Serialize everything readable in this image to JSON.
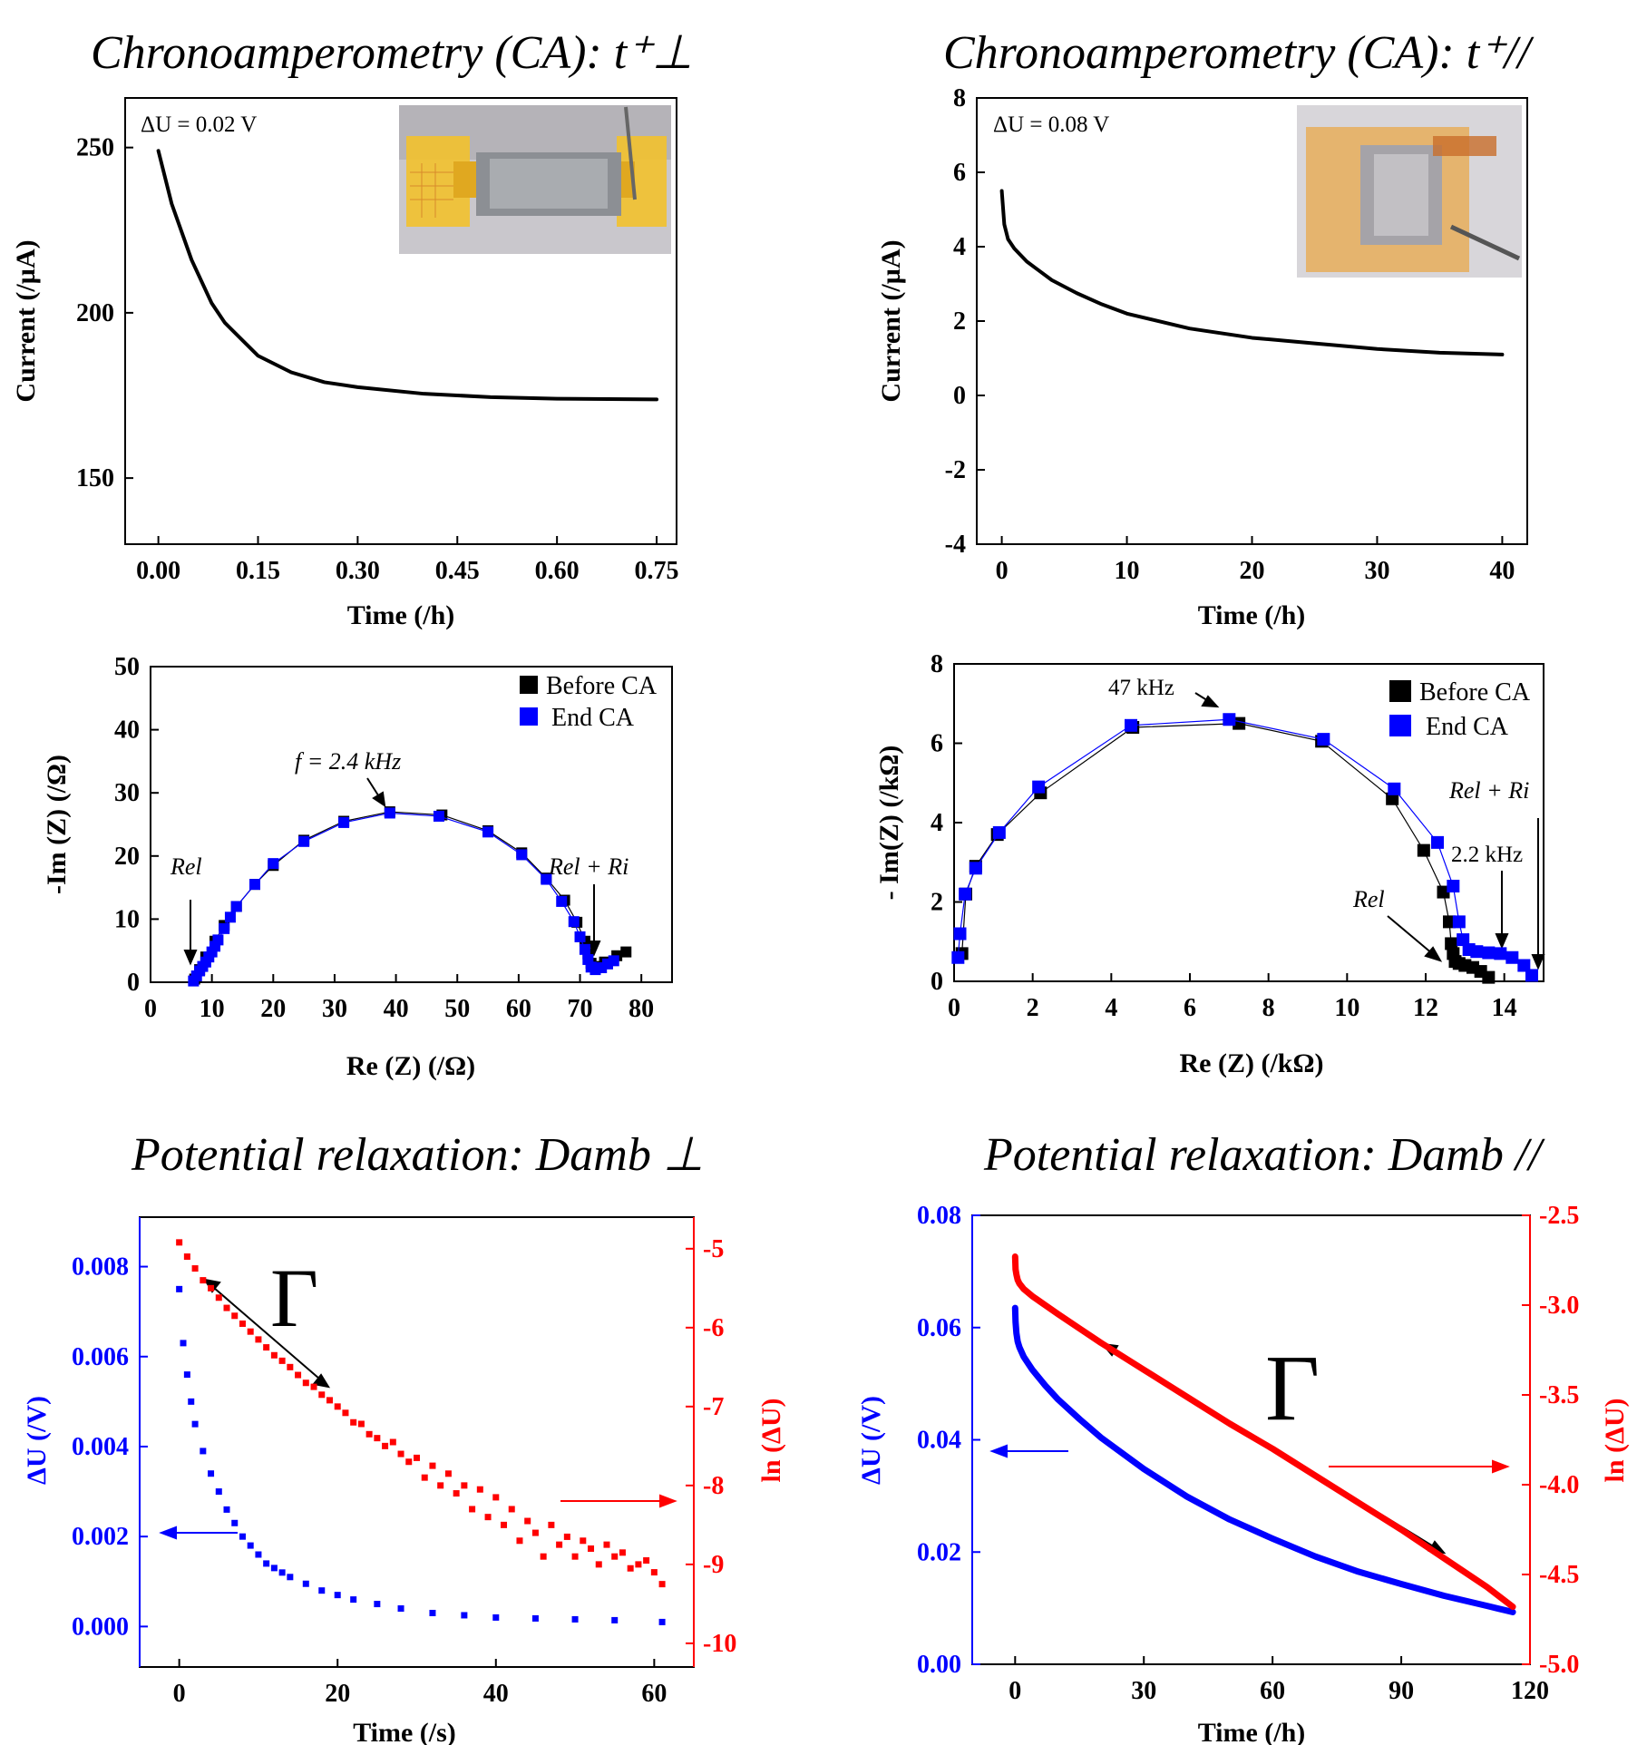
{
  "titles": {
    "p1": "Chronoamperometry (CA):  t⁺⊥",
    "p2": "Chronoamperometry (CA):  t⁺//",
    "p5": "Potential relaxation:  Damb ⊥",
    "p6": "Potential relaxation:  Damb //"
  },
  "chart_data": [
    {
      "type": "line",
      "title": "Chronoamperometry (CA):  t⁺⊥",
      "xlabel": "Time (/h)",
      "ylabel": "Current (/µA)",
      "xlim": [
        -0.05,
        0.78
      ],
      "ylim": [
        130,
        265
      ],
      "xticks": [
        "0.00",
        "0.15",
        "0.30",
        "0.45",
        "0.60",
        "0.75"
      ],
      "yticks": [
        "150",
        "200",
        "250"
      ],
      "annotation": "ΔU = 0.02 V",
      "inset_photo": "cell-photo-perpendicular",
      "series": [
        {
          "color": "#000000",
          "x": [
            0.0,
            0.02,
            0.05,
            0.08,
            0.1,
            0.15,
            0.2,
            0.25,
            0.3,
            0.4,
            0.5,
            0.6,
            0.75
          ],
          "y": [
            249,
            233,
            216,
            203,
            197,
            187,
            182,
            179,
            177.5,
            175.5,
            174.5,
            174,
            173.8
          ]
        }
      ]
    },
    {
      "type": "line",
      "title": "Chronoamperometry (CA):  t⁺//",
      "xlabel": "Time (/h)",
      "ylabel": "Current (/µA)",
      "xlim": [
        -2,
        42
      ],
      "ylim": [
        -4,
        8
      ],
      "xticks": [
        "0",
        "10",
        "20",
        "30",
        "40"
      ],
      "yticks": [
        "-4",
        "-2",
        "0",
        "2",
        "4",
        "6",
        "8"
      ],
      "annotation": "ΔU = 0.08 V",
      "inset_photo": "cell-photo-parallel",
      "series": [
        {
          "color": "#000000",
          "x": [
            0,
            0.2,
            0.5,
            1,
            2,
            4,
            6,
            8,
            10,
            15,
            20,
            25,
            30,
            35,
            40
          ],
          "y": [
            5.5,
            4.6,
            4.2,
            3.95,
            3.6,
            3.1,
            2.75,
            2.45,
            2.2,
            1.8,
            1.55,
            1.4,
            1.25,
            1.15,
            1.1
          ]
        }
      ]
    },
    {
      "type": "scatter",
      "xlabel": "Re (Z) (/Ω)",
      "ylabel": "-Im (Z) (/Ω)",
      "xlim": [
        0,
        85
      ],
      "ylim": [
        0,
        50
      ],
      "xticks": [
        "0",
        "10",
        "20",
        "30",
        "40",
        "50",
        "60",
        "70",
        "80"
      ],
      "yticks": [
        "0",
        "10",
        "20",
        "30",
        "40",
        "50"
      ],
      "legend": "top-right",
      "annotations": [
        "f = 2.4 kHz",
        "Rel",
        "Rel + Ri"
      ],
      "series": [
        {
          "name": "Before CA",
          "color": "#000000",
          "x": [
            7.2,
            8,
            9,
            10.5,
            12,
            14,
            17,
            20,
            25,
            31.5,
            39,
            47.5,
            55,
            60.5,
            64.5,
            67.5,
            69.5,
            70.8,
            71.3,
            71.8,
            72.5,
            74,
            76,
            77.5
          ],
          "y": [
            0.5,
            2,
            4,
            6.5,
            9,
            12,
            15.5,
            18.5,
            22.5,
            25.5,
            27,
            26.5,
            24,
            20.5,
            16.5,
            13,
            9.5,
            6.5,
            4.5,
            3,
            2.5,
            3.2,
            4.2,
            4.8
          ]
        },
        {
          "name": "End CA",
          "color": "#0000ff",
          "x": [
            7,
            7.5,
            8,
            8.5,
            9,
            9.5,
            10,
            10.5,
            11,
            12,
            13,
            14,
            17,
            20,
            25,
            31.5,
            39,
            47,
            55,
            60.5,
            64.5,
            67,
            69,
            70,
            70.8,
            71.3,
            71.8,
            72.5,
            73.5,
            74.5,
            75.5
          ],
          "y": [
            0.2,
            1,
            1.8,
            2.5,
            3.2,
            4,
            4.8,
            5.7,
            6.7,
            8.5,
            10.3,
            12,
            15.5,
            18.8,
            22.3,
            25.3,
            26.8,
            26.3,
            23.8,
            20.2,
            16.3,
            12.8,
            9.6,
            7.2,
            5.2,
            3.6,
            2.4,
            2,
            2.3,
            2.9,
            3.4
          ]
        }
      ]
    },
    {
      "type": "scatter",
      "xlabel": "Re (Z) (/kΩ)",
      "ylabel": "- Im(Z) (/kΩ)",
      "xlim": [
        0,
        15
      ],
      "ylim": [
        0,
        8
      ],
      "xticks": [
        "0",
        "2",
        "4",
        "6",
        "8",
        "10",
        "12",
        "14"
      ],
      "yticks": [
        "0",
        "2",
        "4",
        "6",
        "8"
      ],
      "legend": "top-right",
      "annotations": [
        "47 kHz",
        "Rel",
        "Rel + Ri",
        "2.2 kHz"
      ],
      "series": [
        {
          "name": "Before CA",
          "color": "#000000",
          "x": [
            0.2,
            0.3,
            0.55,
            1.1,
            2.2,
            4.55,
            7.25,
            9.35,
            11.15,
            11.95,
            12.45,
            12.6,
            12.65,
            12.7,
            12.75,
            12.85,
            13.0,
            13.2,
            13.4,
            13.6
          ],
          "y": [
            0.7,
            2.2,
            2.9,
            3.7,
            4.75,
            6.4,
            6.5,
            6.05,
            4.6,
            3.3,
            2.25,
            1.5,
            0.95,
            0.7,
            0.5,
            0.45,
            0.4,
            0.35,
            0.25,
            0.1
          ]
        },
        {
          "name": "End CA",
          "color": "#0000ff",
          "x": [
            0.1,
            0.15,
            0.28,
            0.55,
            1.15,
            2.15,
            4.5,
            7.0,
            9.4,
            11.2,
            12.3,
            12.7,
            12.85,
            12.95,
            13.1,
            13.3,
            13.6,
            13.9,
            14.2,
            14.5,
            14.7
          ],
          "y": [
            0.6,
            1.2,
            2.2,
            2.85,
            3.75,
            4.9,
            6.45,
            6.6,
            6.1,
            4.85,
            3.5,
            2.4,
            1.5,
            1.05,
            0.8,
            0.75,
            0.72,
            0.7,
            0.6,
            0.4,
            0.15
          ]
        }
      ]
    },
    {
      "type": "scatter",
      "xlabel": "Time (/s)",
      "ylabel": "ΔU (/V)",
      "ylabel_right": "ln (ΔU)",
      "xlim": [
        -5,
        65
      ],
      "ylim": [
        -0.0009,
        0.0091
      ],
      "ylim_right": [
        -10.3,
        -4.6
      ],
      "xticks": [
        "0",
        "20",
        "40",
        "60"
      ],
      "yticks": [
        "0.000",
        "0.002",
        "0.004",
        "0.006",
        "0.008"
      ],
      "yticks_right": [
        "-10",
        "-9",
        "-8",
        "-7",
        "-6",
        "-5"
      ],
      "annotations": [
        "Γ"
      ],
      "series": [
        {
          "name": "ΔU",
          "color": "#0000ff",
          "axis": "left",
          "x": [
            0,
            0.5,
            1,
            1.5,
            2,
            3,
            4,
            5,
            6,
            7,
            8,
            9,
            10,
            11,
            12,
            13,
            14,
            16,
            18,
            20,
            22,
            25,
            28,
            32,
            36,
            40,
            45,
            50,
            55,
            61
          ],
          "y": [
            0.0075,
            0.0063,
            0.0056,
            0.005,
            0.0045,
            0.0039,
            0.0034,
            0.003,
            0.0026,
            0.0023,
            0.002,
            0.0018,
            0.0016,
            0.0014,
            0.0013,
            0.0012,
            0.0011,
            0.00095,
            0.0008,
            0.0007,
            0.0006,
            0.0005,
            0.0004,
            0.0003,
            0.00025,
            0.0002,
            0.00018,
            0.00016,
            0.00014,
            0.0001
          ]
        },
        {
          "name": "ln (ΔU)",
          "color": "#ff0000",
          "axis": "right",
          "x": [
            0,
            1,
            2,
            3,
            4,
            5,
            6,
            7,
            8,
            9,
            10,
            11,
            12,
            13,
            14,
            15,
            16,
            17,
            18,
            19,
            20,
            21,
            22,
            23,
            24,
            25,
            26,
            27,
            28,
            29,
            30,
            31,
            32,
            33,
            34,
            35,
            36,
            37,
            38,
            39,
            40,
            41,
            42,
            43,
            44,
            45,
            46,
            47,
            48,
            49,
            50,
            51,
            52,
            53,
            54,
            55,
            56,
            57,
            58,
            59,
            60,
            61
          ],
          "y": [
            -4.92,
            -5.1,
            -5.25,
            -5.4,
            -5.5,
            -5.62,
            -5.75,
            -5.85,
            -5.95,
            -6.05,
            -6.15,
            -6.25,
            -6.35,
            -6.42,
            -6.5,
            -6.6,
            -6.7,
            -6.75,
            -6.85,
            -6.92,
            -7.0,
            -7.08,
            -7.2,
            -7.22,
            -7.35,
            -7.4,
            -7.5,
            -7.45,
            -7.6,
            -7.7,
            -7.65,
            -7.9,
            -7.75,
            -8.0,
            -7.85,
            -8.1,
            -8.0,
            -8.3,
            -8.05,
            -8.4,
            -8.15,
            -8.5,
            -8.3,
            -8.7,
            -8.45,
            -8.6,
            -8.9,
            -8.5,
            -8.75,
            -8.65,
            -8.9,
            -8.7,
            -8.8,
            -9.0,
            -8.75,
            -8.9,
            -8.85,
            -9.05,
            -9.0,
            -8.95,
            -9.1,
            -9.25
          ]
        }
      ]
    },
    {
      "type": "line",
      "xlabel": "Time (/h)",
      "ylabel": "ΔU (/V)",
      "ylabel_right": "ln (ΔU)",
      "xlim": [
        -10,
        120
      ],
      "ylim": [
        0,
        0.08
      ],
      "ylim_right": [
        -5.0,
        -2.5
      ],
      "xticks": [
        "0",
        "30",
        "60",
        "90",
        "120"
      ],
      "yticks": [
        "0.00",
        "0.02",
        "0.04",
        "0.06",
        "0.08"
      ],
      "yticks_right": [
        "-5.0",
        "-4.5",
        "-4.0",
        "-3.5",
        "-3.0",
        "-2.5"
      ],
      "annotations": [
        "Γ"
      ],
      "series": [
        {
          "name": "ΔU",
          "color": "#0000ff",
          "axis": "left",
          "x": [
            0,
            0.1,
            0.3,
            0.6,
            1,
            2,
            4,
            7,
            10,
            15,
            20,
            30,
            40,
            50,
            60,
            70,
            80,
            90,
            100,
            110,
            116
          ],
          "y": [
            0.0635,
            0.061,
            0.059,
            0.0575,
            0.0565,
            0.0548,
            0.0525,
            0.0497,
            0.0472,
            0.0437,
            0.0404,
            0.0348,
            0.0299,
            0.0258,
            0.0224,
            0.0192,
            0.0165,
            0.0143,
            0.0122,
            0.0104,
            0.0093
          ]
        },
        {
          "name": "ln (ΔU)",
          "color": "#ff0000",
          "axis": "right",
          "x": [
            0,
            0.1,
            0.3,
            0.6,
            1,
            2,
            4,
            7,
            10,
            15,
            20,
            30,
            40,
            50,
            60,
            70,
            80,
            90,
            100,
            110,
            116
          ],
          "y": [
            -2.73,
            -2.8,
            -2.83,
            -2.86,
            -2.88,
            -2.91,
            -2.95,
            -3.0,
            -3.05,
            -3.13,
            -3.21,
            -3.36,
            -3.51,
            -3.66,
            -3.8,
            -3.95,
            -4.1,
            -4.25,
            -4.41,
            -4.57,
            -4.68
          ]
        }
      ]
    }
  ],
  "colors": {
    "blue": "#0000ff",
    "red": "#ff0000",
    "black": "#000000"
  }
}
